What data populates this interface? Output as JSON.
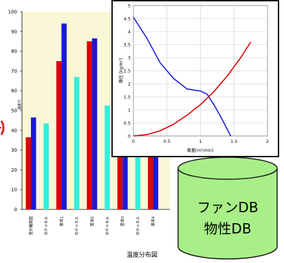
{
  "caption": "温度分布図",
  "database": {
    "line1": "ファンDB",
    "line2": "物性DB"
  },
  "colors": {
    "plot_bg": "#faf7d7",
    "red": "#dd0000",
    "blue": "#1a1ad6",
    "cyan": "#33eedd",
    "db_fill": "#a8ef88",
    "accent": "#e02020"
  },
  "chart_data": [
    {
      "type": "bar",
      "ylabel": "温度℃",
      "ylim": [
        0,
        100
      ],
      "yticks": [
        0,
        10,
        20,
        30,
        40,
        50,
        60,
        70,
        80,
        90,
        100
      ],
      "categories": [
        "室外機周囲",
        "のチャネル",
        "筐体1",
        "のチャネル",
        "筐体2",
        "のチャネル",
        "筐体3",
        "のチャネル",
        "筐体4"
      ],
      "groups": [
        {
          "red": 36.5,
          "blue": 46.5
        },
        {
          "cyan": 43.5
        },
        {
          "red": 75,
          "blue": 94
        },
        {
          "cyan": 67
        },
        {
          "red": 85,
          "blue": 86.5
        },
        {
          "cyan": 52.5
        },
        {
          "red": 47,
          "blue": 44
        },
        {
          "cyan": 38
        },
        {
          "red": 47.5,
          "blue": 49
        }
      ]
    },
    {
      "type": "line",
      "xlabel": "風量[m³/min]",
      "ylabel": "静圧 [kg/m²]",
      "xlim": [
        0,
        2
      ],
      "ylim": [
        0,
        5
      ],
      "xticks": [
        "0",
        "0.5",
        "1",
        "1.5",
        "2"
      ],
      "yticks": [
        "0",
        "0.5",
        "1",
        "1.5",
        "2",
        "2.5",
        "3",
        "3.5",
        "4",
        "4.5",
        "5"
      ],
      "series": [
        {
          "color": "blue",
          "x": [
            0,
            0.2,
            0.4,
            0.6,
            0.8,
            1.0,
            1.1,
            1.2,
            1.3,
            1.45
          ],
          "y": [
            4.55,
            3.75,
            2.8,
            2.2,
            1.8,
            1.72,
            1.6,
            1.2,
            0.75,
            0
          ]
        },
        {
          "color": "red",
          "x": [
            0,
            0.2,
            0.4,
            0.6,
            0.8,
            1.0,
            1.2,
            1.4,
            1.6,
            1.75
          ],
          "y": [
            0,
            0.05,
            0.2,
            0.45,
            0.8,
            1.2,
            1.7,
            2.3,
            3.0,
            3.6
          ]
        }
      ]
    }
  ]
}
